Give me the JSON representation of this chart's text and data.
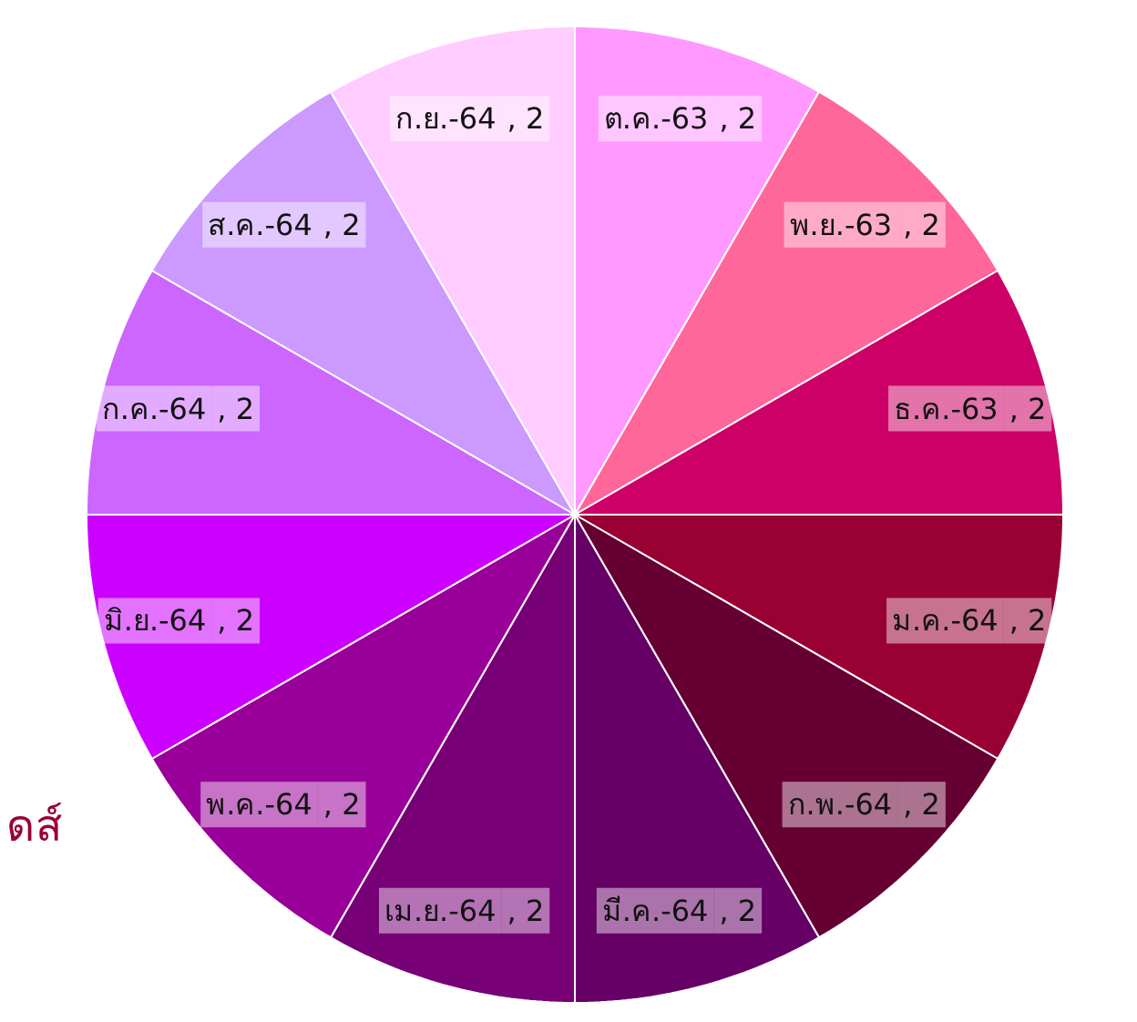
{
  "chart_data": {
    "type": "pie",
    "categories": [
      "ต.ค.-63",
      "พ.ย.-63",
      "ธ.ค.-63",
      "ม.ค.-64",
      "ก.พ.-64",
      "มี.ค.-64",
      "เม.ย.-64",
      "พ.ค.-64",
      "มิ.ย.-64",
      "ก.ค.-64",
      "ส.ค.-64",
      "ก.ย.-64"
    ],
    "values": [
      2,
      2,
      2,
      2,
      2,
      2,
      2,
      2,
      2,
      2,
      2,
      2
    ],
    "colors": [
      "#ff99ff",
      "#ff6699",
      "#cc0066",
      "#990033",
      "#660033",
      "#660066",
      "#770077",
      "#990099",
      "#cc00ff",
      "#cc66ff",
      "#cc99ff",
      "#ffccff"
    ],
    "value_labels": [
      ", 2",
      ", 2",
      ", 2",
      ", 2",
      ", 2",
      ", 2",
      ", 2",
      ", 2",
      ", 2",
      ", 2",
      ", 2",
      ", 2"
    ],
    "annotations": [
      "ดส์"
    ]
  }
}
